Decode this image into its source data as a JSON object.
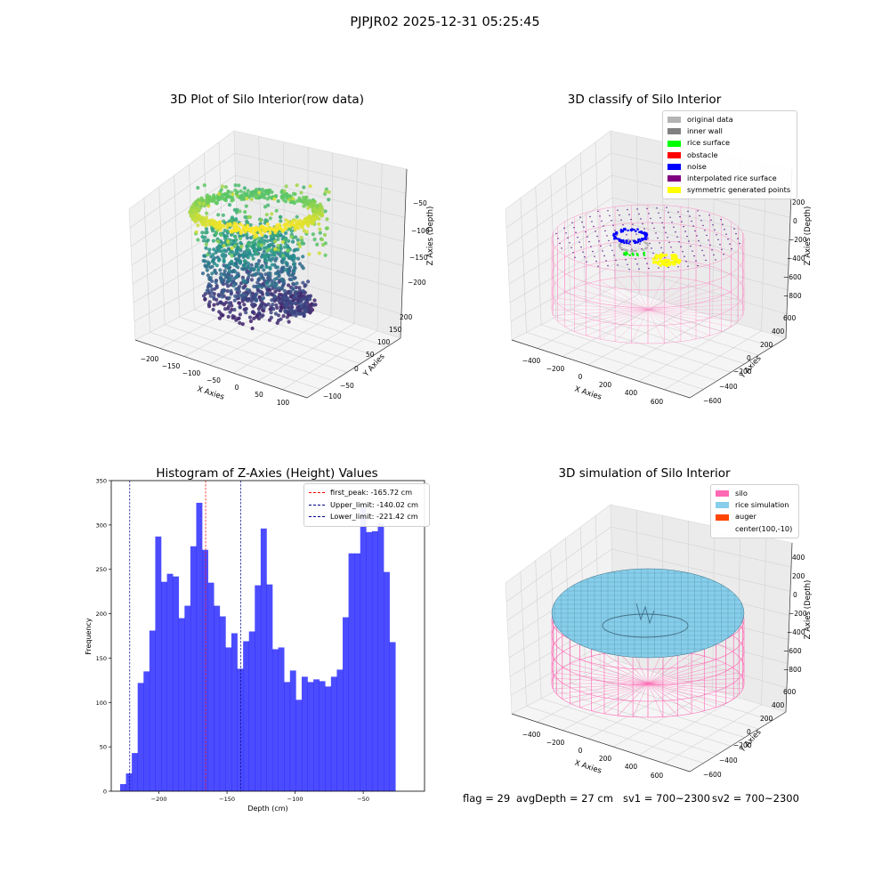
{
  "suptitle": "PJPJR02 2025-12-31 05:25:45",
  "footer": {
    "flag": "flag = 29",
    "avg_depth": "avgDepth = 27 cm",
    "sv1": "sv1 = 700~2300",
    "sv2": "sv2 = 700~2300"
  },
  "chart_data": [
    {
      "type": "scatter",
      "projection": "3d",
      "title": "3D Plot of Silo Interior(row data)",
      "xlabel": "X Axies",
      "ylabel": "Y Axies",
      "zlabel": "Z Axies (Depth)",
      "x_ticks": [
        "−200",
        "−150",
        "−100",
        "−50",
        "0",
        "50",
        "100"
      ],
      "y_ticks": [
        "−100",
        "−50",
        "0",
        "50",
        "100",
        "150",
        "200"
      ],
      "z_ticks": [
        "−200",
        "−150",
        "−100",
        "−50"
      ],
      "colormap": "viridis"
    },
    {
      "type": "scatter",
      "projection": "3d",
      "title": "3D classify of Silo Interior",
      "xlabel": "X Axies",
      "ylabel": "Y Axies",
      "zlabel": "Z Axies (Depth)",
      "x_ticks": [
        "−400",
        "−200",
        "0",
        "200",
        "400",
        "600"
      ],
      "y_ticks": [
        "−600",
        "−400",
        "−200",
        "0",
        "200",
        "400",
        "600"
      ],
      "z_ticks": [
        "−800",
        "−600",
        "−400",
        "−200",
        "0",
        "200"
      ],
      "legend": [
        {
          "label": "original data",
          "color": "#b3b3b3"
        },
        {
          "label": "inner wall",
          "color": "#808080"
        },
        {
          "label": "rice surface",
          "color": "#00ff00"
        },
        {
          "label": "obstacle",
          "color": "#ff0000"
        },
        {
          "label": "noise",
          "color": "#0000ff"
        },
        {
          "label": "interpolated rice surface",
          "color": "#800080"
        },
        {
          "label": "symmetric generated points",
          "color": "#ffff00"
        }
      ]
    },
    {
      "type": "bar",
      "title": "Histogram of Z-Axies (Height) Values",
      "xlabel": "Depth (cm)",
      "ylabel": "Frequency",
      "xlim": [
        -235,
        -5
      ],
      "ylim": [
        0,
        350
      ],
      "x_ticks": [
        -200,
        -150,
        -100,
        -50
      ],
      "y_ticks": [
        0,
        50,
        100,
        150,
        200,
        250,
        300,
        350
      ],
      "bin_start": -228.5,
      "bin_width": 4.3,
      "values": [
        8,
        20,
        43,
        122,
        135,
        181,
        287,
        236,
        245,
        242,
        195,
        209,
        276,
        325,
        272,
        235,
        209,
        197,
        162,
        178,
        138,
        169,
        180,
        232,
        296,
        233,
        160,
        162,
        123,
        136,
        103,
        129,
        123,
        126,
        124,
        118,
        129,
        137,
        196,
        268,
        268,
        320,
        292,
        293,
        302,
        247,
        168
      ],
      "bar_color": "#0000ff",
      "vlines": [
        {
          "label": "first_peak: -165.72 cm",
          "x": -165.72,
          "color": "#ff0000"
        },
        {
          "label": "Upper_limit: -140.02 cm",
          "x": -140.02,
          "color": "#00008b"
        },
        {
          "label": "Lower_limit: -221.42 cm",
          "x": -221.42,
          "color": "#00008b"
        }
      ]
    },
    {
      "type": "scatter",
      "projection": "3d",
      "title": "3D simulation of Silo Interior",
      "xlabel": "X Axies",
      "ylabel": "Y Axies",
      "zlabel": "Z Axies (Depth)",
      "x_ticks": [
        "−400",
        "−200",
        "0",
        "200",
        "400",
        "600"
      ],
      "y_ticks": [
        "−600",
        "−400",
        "−200",
        "0",
        "200",
        "400",
        "600"
      ],
      "z_ticks": [
        "−800",
        "−600",
        "−400",
        "−200",
        "0",
        "200",
        "400"
      ],
      "legend": [
        {
          "label": "silo",
          "color": "#ff69b4",
          "swatch": true
        },
        {
          "label": "rice simulation",
          "color": "#87ceeb",
          "swatch": true
        },
        {
          "label": "auger",
          "color": "#ff4500",
          "swatch": true
        },
        {
          "label": "center(100,-10)",
          "color": "#ffffff",
          "swatch": false
        }
      ]
    }
  ]
}
